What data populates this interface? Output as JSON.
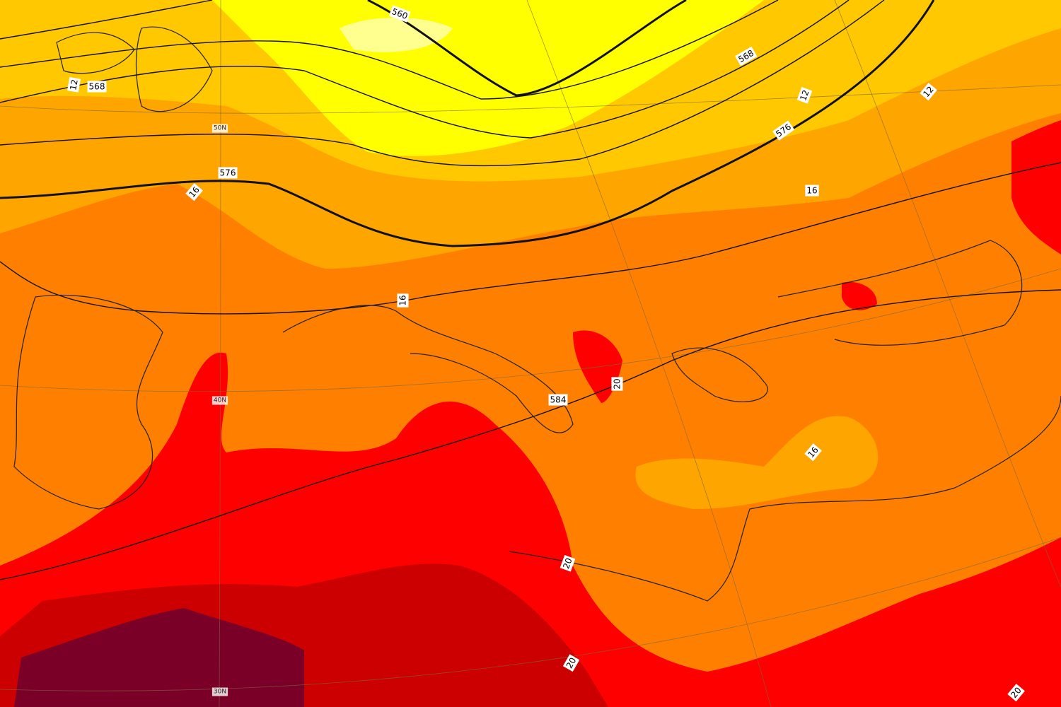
{
  "map": {
    "contour_labels": [
      {
        "text": "560"
      },
      {
        "text": "568"
      },
      {
        "text": "568"
      },
      {
        "text": "576"
      },
      {
        "text": "576"
      },
      {
        "text": "584"
      },
      {
        "text": "12"
      },
      {
        "text": "12"
      },
      {
        "text": "12"
      },
      {
        "text": "16"
      },
      {
        "text": "16"
      },
      {
        "text": "16"
      },
      {
        "text": "16"
      },
      {
        "text": "20"
      },
      {
        "text": "20"
      },
      {
        "text": "20"
      },
      {
        "text": "20"
      }
    ],
    "latitude_labels": [
      {
        "text": "50N"
      },
      {
        "text": "40N"
      },
      {
        "text": "30N"
      }
    ]
  }
}
